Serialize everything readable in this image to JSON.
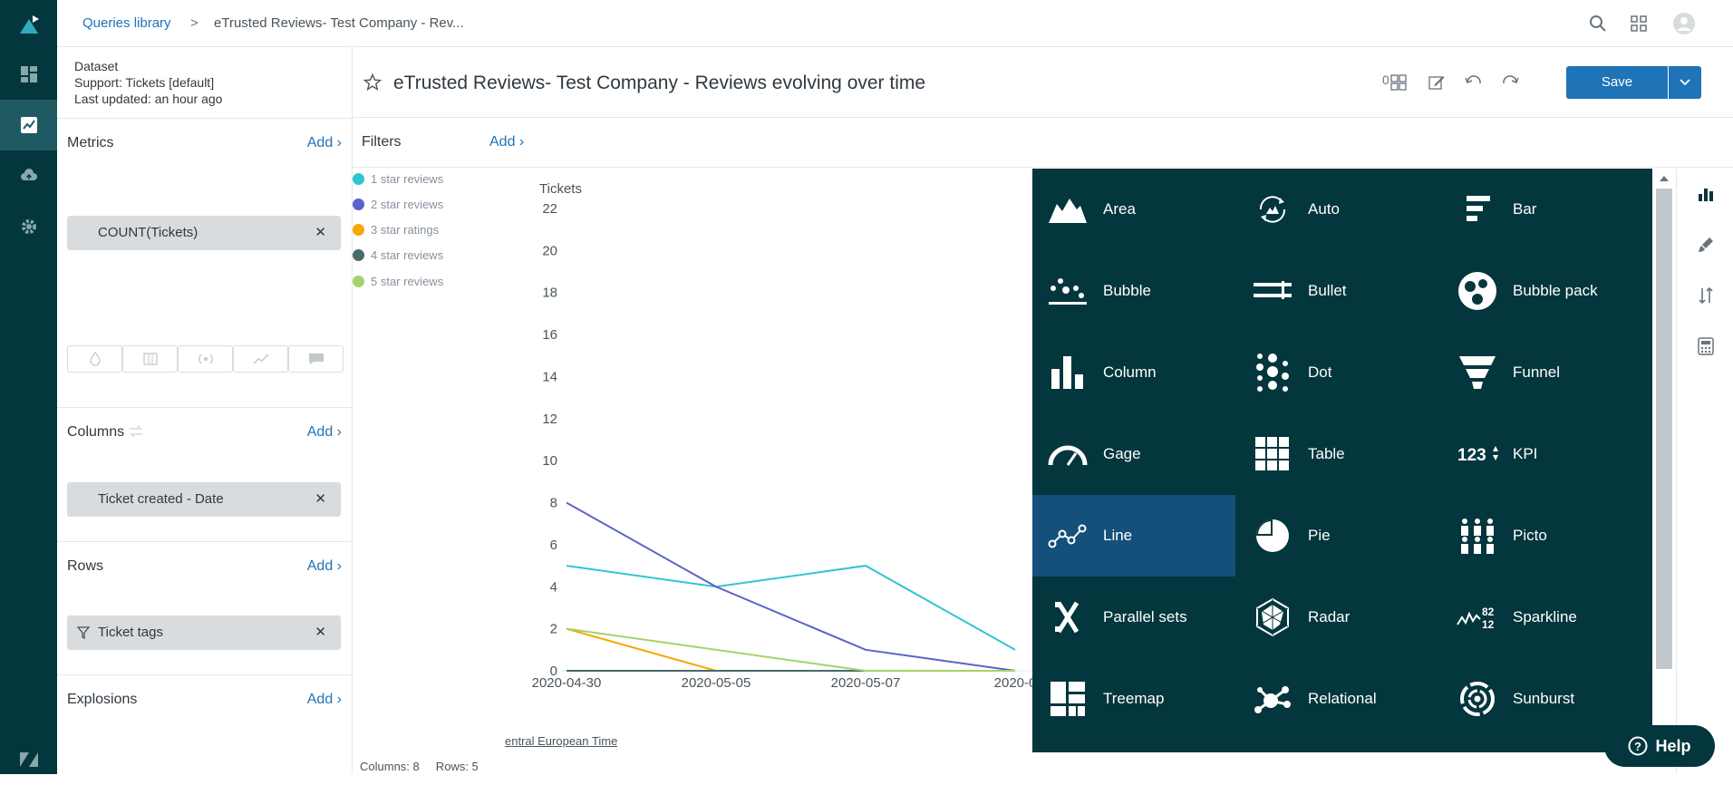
{
  "breadcrumb": {
    "library_link": "Queries library",
    "separator": ">",
    "current": "eTrusted Reviews- Test Company - Rev..."
  },
  "dataset": {
    "label": "Dataset",
    "name": "Support: Tickets [default]",
    "updated": "Last updated: an hour ago"
  },
  "query": {
    "title": "eTrusted Reviews- Test Company - Reviews evolving over time",
    "explore_badge": "0",
    "save_label": "Save"
  },
  "metrics": {
    "title": "Metrics",
    "add": "Add ›",
    "items": [
      "COUNT(Tickets)"
    ]
  },
  "columns": {
    "title": "Columns",
    "add": "Add ›",
    "items": [
      "Ticket created - Date"
    ]
  },
  "rows": {
    "title": "Rows",
    "add": "Add ›",
    "items": [
      "Ticket tags"
    ]
  },
  "explosions": {
    "title": "Explosions",
    "add": "Add ›"
  },
  "filters": {
    "title": "Filters",
    "add": "Add ›"
  },
  "legend": [
    {
      "label": "1 star reviews",
      "color": "#30c4d4"
    },
    {
      "label": "2 star reviews",
      "color": "#5b62c9"
    },
    {
      "label": "3 star ratings",
      "color": "#f5a800"
    },
    {
      "label": "4 star reviews",
      "color": "#4a6a6a"
    },
    {
      "label": "5 star reviews",
      "color": "#a3d36b"
    }
  ],
  "chart_data": {
    "type": "line",
    "ylabel": "Tickets",
    "ylim": [
      0,
      22
    ],
    "yticks": [
      0,
      2,
      4,
      6,
      8,
      10,
      12,
      14,
      16,
      18,
      20,
      22
    ],
    "x": [
      "2020-04-30",
      "2020-05-05",
      "2020-05-07",
      "2020-0"
    ],
    "series": [
      {
        "name": "1 star reviews",
        "color": "#30c4d4",
        "values": [
          5,
          4,
          5,
          1
        ]
      },
      {
        "name": "2 star reviews",
        "color": "#5b62c9",
        "values": [
          8,
          4,
          1,
          0
        ]
      },
      {
        "name": "3 star ratings",
        "color": "#f5a800",
        "values": [
          2,
          0,
          0,
          0
        ]
      },
      {
        "name": "4 star reviews",
        "color": "#4a6a6a",
        "values": [
          0,
          0,
          0,
          0
        ]
      },
      {
        "name": "5 star reviews",
        "color": "#a3d36b",
        "values": [
          2,
          1,
          0,
          0
        ]
      }
    ]
  },
  "chart_types": [
    [
      {
        "label": "Area",
        "icon": "area-icon"
      },
      {
        "label": "Auto",
        "icon": "auto-icon"
      },
      {
        "label": "Bar",
        "icon": "bar-icon"
      }
    ],
    [
      {
        "label": "Bubble",
        "icon": "bubble-icon"
      },
      {
        "label": "Bullet",
        "icon": "bullet-icon"
      },
      {
        "label": "Bubble pack",
        "icon": "bubble-pack-icon"
      }
    ],
    [
      {
        "label": "Column",
        "icon": "column-icon"
      },
      {
        "label": "Dot",
        "icon": "dot-icon"
      },
      {
        "label": "Funnel",
        "icon": "funnel-icon"
      }
    ],
    [
      {
        "label": "Gage",
        "icon": "gage-icon"
      },
      {
        "label": "Table",
        "icon": "table-icon"
      },
      {
        "label": "KPI",
        "icon": "kpi-icon"
      }
    ],
    [
      {
        "label": "Line",
        "icon": "line-icon",
        "selected": true
      },
      {
        "label": "Pie",
        "icon": "pie-icon"
      },
      {
        "label": "Picto",
        "icon": "picto-icon"
      }
    ],
    [
      {
        "label": "Parallel sets",
        "icon": "parallel-sets-icon"
      },
      {
        "label": "Radar",
        "icon": "radar-icon"
      },
      {
        "label": "Sparkline",
        "icon": "sparkline-icon"
      }
    ],
    [
      {
        "label": "Treemap",
        "icon": "treemap-icon"
      },
      {
        "label": "Relational",
        "icon": "relational-icon"
      },
      {
        "label": "Sunburst",
        "icon": "sunburst-icon"
      }
    ]
  ],
  "footer": {
    "timezone": "entral European Time",
    "stats": "Columns: 8     Rows: 5"
  },
  "help": {
    "label": "Help"
  },
  "colors": {
    "nav_bg": "#03363d",
    "accent": "#1f73b7",
    "selected_type_bg": "#14507a"
  }
}
